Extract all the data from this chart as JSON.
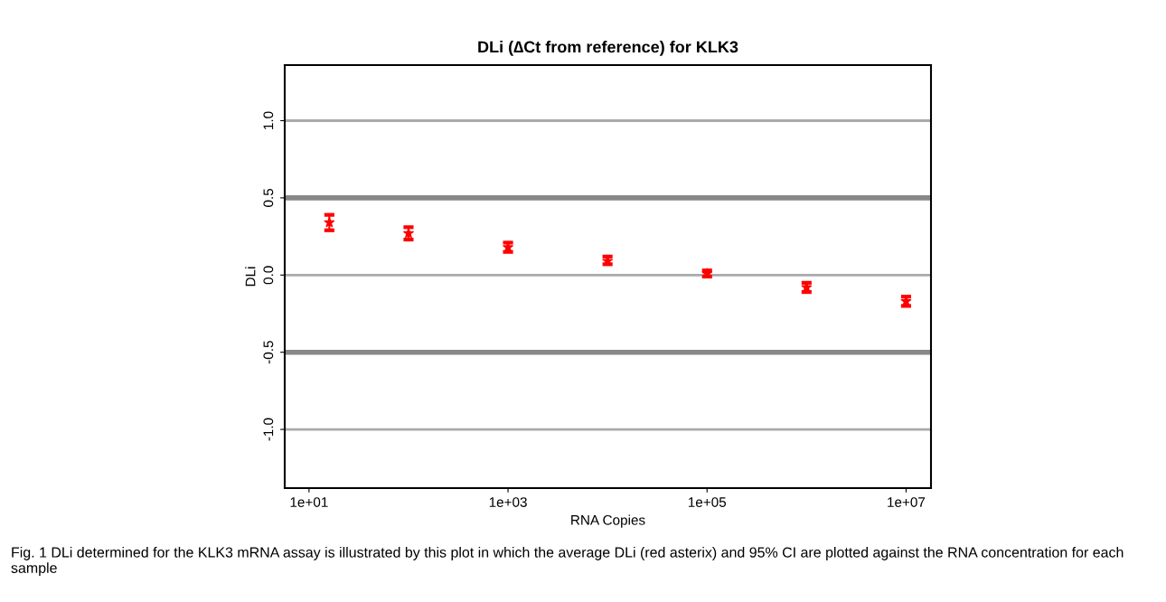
{
  "chart_data": {
    "type": "scatter",
    "title": "DLi (∆Ct from reference) for KLK3",
    "xlabel": "RNA Copies",
    "ylabel": "DLi",
    "x": [
      16,
      100,
      1000,
      10000,
      100000,
      1000000,
      10000000
    ],
    "series": [
      {
        "color": "#ff0000",
        "values": [
          0.34,
          0.27,
          0.18,
          0.09,
          0.01,
          -0.08,
          -0.17
        ],
        "errors": [
          [
            0.29,
            0.39
          ],
          [
            0.23,
            0.31
          ],
          [
            0.15,
            0.21
          ],
          [
            0.07,
            0.12
          ],
          [
            -0.01,
            0.03
          ],
          [
            -0.11,
            -0.05
          ],
          [
            -0.2,
            -0.14
          ]
        ]
      }
    ],
    "log": "x",
    "marker": "star",
    "legend": false,
    "grid": false,
    "xlim": [
      5.7,
      17800000
    ],
    "ylim": [
      -1.38,
      1.36
    ],
    "xticks": [
      {
        "value": 10,
        "label": "1e+01"
      },
      {
        "value": 1000,
        "label": "1e+03"
      },
      {
        "value": 100000,
        "label": "1e+05"
      },
      {
        "value": 10000000,
        "label": "1e+07"
      }
    ],
    "yticks": [
      {
        "value": -1.0,
        "label": "-1.0"
      },
      {
        "value": -0.5,
        "label": "-0.5"
      },
      {
        "value": 0.0,
        "label": "0.0"
      },
      {
        "value": 0.5,
        "label": "0.5"
      },
      {
        "value": 1.0,
        "label": "1.0"
      }
    ],
    "ref_lines": [
      {
        "axis": "y",
        "value": 1.0,
        "color": "#aaaaaa"
      },
      {
        "axis": "y",
        "value": 0.5,
        "color": "#888888"
      },
      {
        "axis": "y",
        "value": 0.0,
        "color": "#aaaaaa"
      },
      {
        "axis": "y",
        "value": -0.5,
        "color": "#888888"
      },
      {
        "axis": "y",
        "value": -1.0,
        "color": "#aaaaaa"
      }
    ],
    "annotations": [
      "Fig. 1 DLi determined for the KLK3 mRNA assay is illustrated by this plot in which the average DLi (red asterix) and 95% CI are plotted against the RNA concentration for each sample"
    ]
  }
}
